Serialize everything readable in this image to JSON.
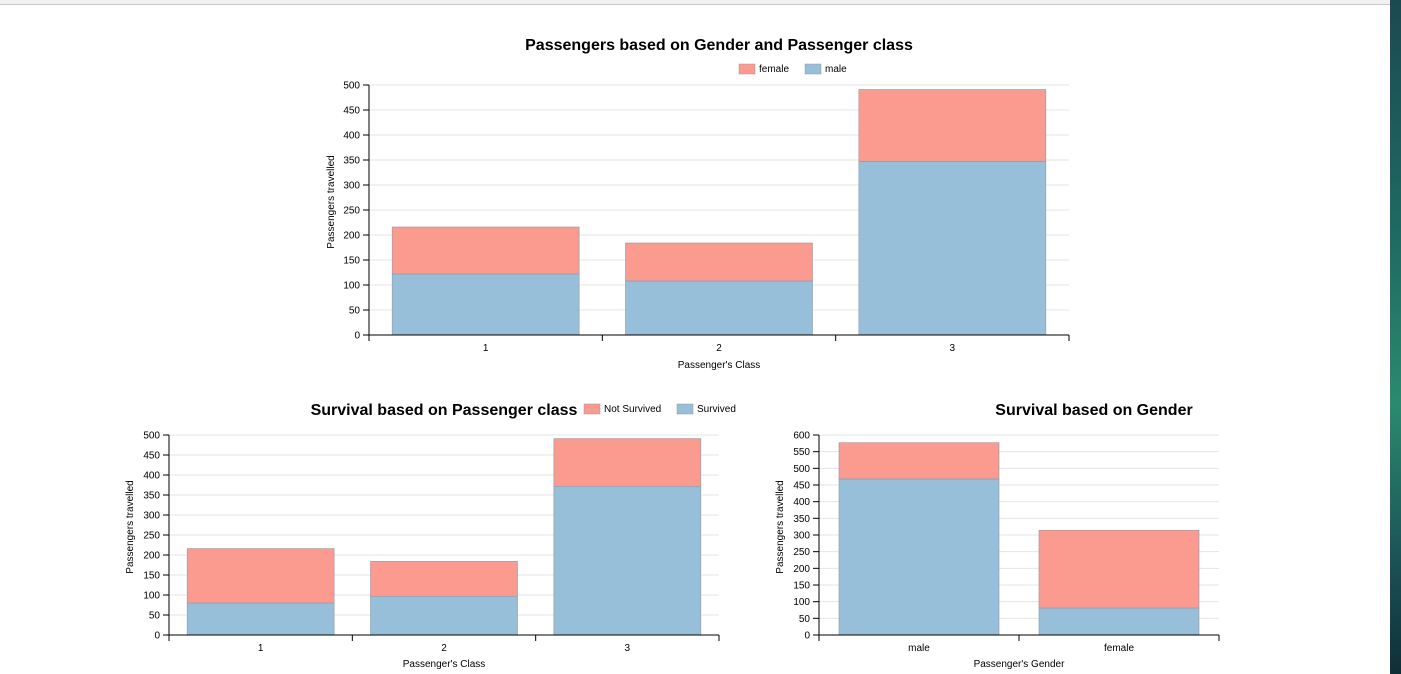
{
  "colors": {
    "female": "#fb9a8f",
    "male": "#98bfda",
    "not_survived": "#fb9a8f",
    "survived": "#98bfda"
  },
  "chart_data": [
    {
      "id": "gender-class",
      "type": "bar",
      "stacked": true,
      "title": "Passengers based on Gender and Passenger class",
      "xlabel": "Passenger's Class",
      "ylabel": "Passengers travelled",
      "categories": [
        "1",
        "2",
        "3"
      ],
      "ylim": [
        0,
        500
      ],
      "yticks": [
        0,
        50,
        100,
        150,
        200,
        250,
        300,
        350,
        400,
        450,
        500
      ],
      "grid": true,
      "legend_position": "top-right",
      "series": [
        {
          "name": "male",
          "values": [
            122,
            108,
            347
          ],
          "color": "#98bfda"
        },
        {
          "name": "female",
          "values": [
            94,
            76,
            144
          ],
          "color": "#fb9a8f"
        }
      ],
      "legend": [
        {
          "name": "female",
          "color": "#fb9a8f"
        },
        {
          "name": "male",
          "color": "#98bfda"
        }
      ]
    },
    {
      "id": "survival-class",
      "type": "bar",
      "stacked": true,
      "title": "Survival based on Passenger class",
      "xlabel": "Passenger's Class",
      "ylabel": "Passengers travelled",
      "categories": [
        "1",
        "2",
        "3"
      ],
      "ylim": [
        0,
        500
      ],
      "yticks": [
        0,
        50,
        100,
        150,
        200,
        250,
        300,
        350,
        400,
        450,
        500
      ],
      "grid": true,
      "legend_position": "top-right",
      "series": [
        {
          "name": "Survived",
          "values": [
            80,
            97,
            372
          ],
          "color": "#98bfda"
        },
        {
          "name": "Not Survived",
          "values": [
            136,
            87,
            119
          ],
          "color": "#fb9a8f"
        }
      ],
      "legend": [
        {
          "name": "Not Survived",
          "color": "#fb9a8f"
        },
        {
          "name": "Survived",
          "color": "#98bfda"
        }
      ]
    },
    {
      "id": "survival-gender",
      "type": "bar",
      "stacked": true,
      "title": "Survival based on Gender",
      "xlabel": "Passenger's Gender",
      "ylabel": "Passengers travelled",
      "categories": [
        "male",
        "female"
      ],
      "ylim": [
        0,
        600
      ],
      "yticks": [
        0,
        50,
        100,
        150,
        200,
        250,
        300,
        350,
        400,
        450,
        500,
        550,
        600
      ],
      "grid": true,
      "legend_position": "none",
      "series": [
        {
          "name": "Survived",
          "values": [
            468,
            81
          ],
          "color": "#98bfda"
        },
        {
          "name": "Not Survived",
          "values": [
            109,
            233
          ],
          "color": "#fb9a8f"
        }
      ],
      "legend": []
    }
  ]
}
